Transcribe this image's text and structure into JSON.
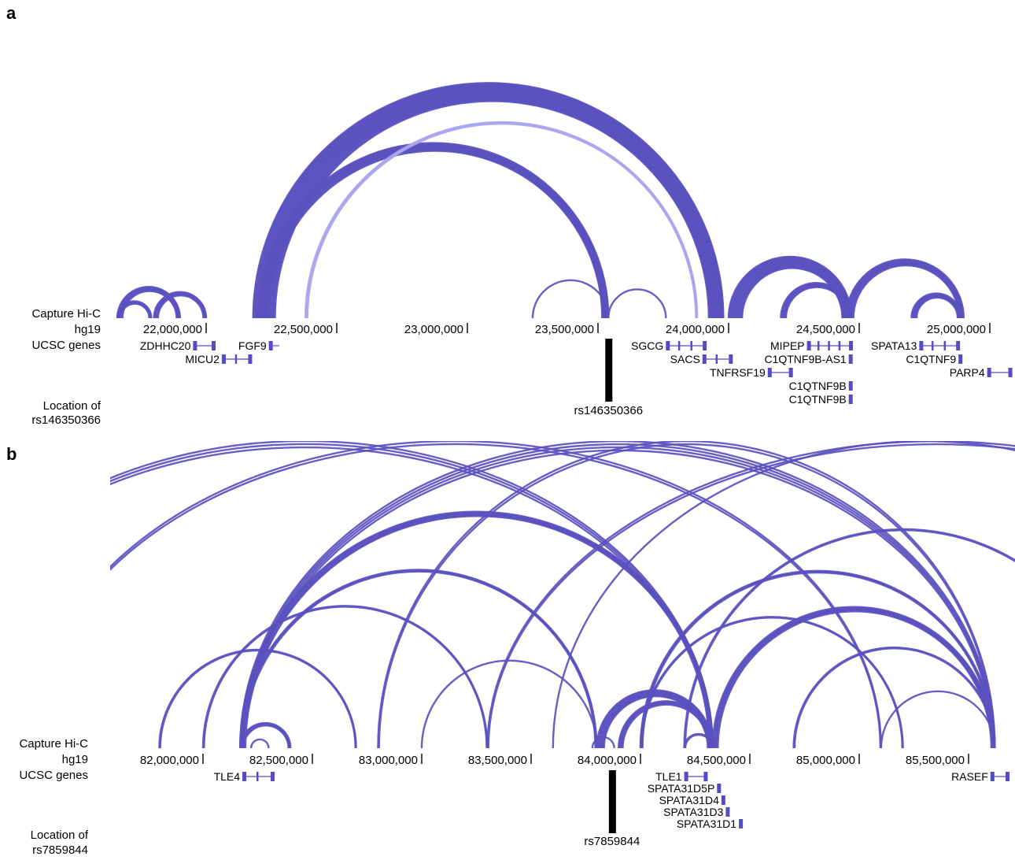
{
  "panels": [
    {
      "id": "a",
      "letter": "a",
      "track_labels": {
        "capture": "Capture Hi-C",
        "assembly": "hg19",
        "genes": "UCSC genes",
        "location_line1": "Location of",
        "location_line2": "rs146350366"
      },
      "ticks": [
        {
          "label": "22,000,000",
          "pos": 22000000
        },
        {
          "label": "22,500,000",
          "pos": 22500000
        },
        {
          "label": "23,000,000",
          "pos": 23000000
        },
        {
          "label": "23,500,000",
          "pos": 23500000
        },
        {
          "label": "24,000,000",
          "pos": 24000000
        },
        {
          "label": "24,500,000",
          "pos": 24500000
        },
        {
          "label": "25,000,000",
          "pos": 25000000
        }
      ],
      "snp": {
        "label": "rs146350366",
        "pos": 23540000
      },
      "genes": [
        {
          "name": "ZDHHC20",
          "start": 21950000,
          "end": 22030000,
          "row": 0
        },
        {
          "name": "FGF9",
          "start": 22240000,
          "end": 22280000,
          "row": 0
        },
        {
          "name": "MICU2",
          "start": 22060000,
          "end": 22170000,
          "row": 1
        },
        {
          "name": "SGCG",
          "start": 23760000,
          "end": 23910000,
          "row": 0
        },
        {
          "name": "SACS",
          "start": 23900000,
          "end": 24010000,
          "row": 1
        },
        {
          "name": "TNFRSF19",
          "start": 24150000,
          "end": 24240000,
          "row": 2
        },
        {
          "name": "MIPEP",
          "start": 24300000,
          "end": 24470000,
          "row": 0
        },
        {
          "name": "C1QTNF9B-AS1",
          "start": 24460000,
          "end": 24470000,
          "row": 1
        },
        {
          "name": "C1QTNF9B",
          "start": 24460000,
          "end": 24470000,
          "row": 3
        },
        {
          "name": "C1QTNF9B",
          "start": 24460000,
          "end": 24470000,
          "row": 4
        },
        {
          "name": "SPATA13",
          "start": 24730000,
          "end": 24880000,
          "row": 0
        },
        {
          "name": "C1QTNF9",
          "start": 24880000,
          "end": 24890000,
          "row": 1
        },
        {
          "name": "PARP4",
          "start": 24990000,
          "end": 25080000,
          "row": 2
        }
      ],
      "interactions": [
        {
          "from": 22180000,
          "to": 23980000,
          "count": 22
        },
        {
          "from": 22200000,
          "to": 23540000,
          "count": 10
        },
        {
          "from": 22380000,
          "to": 23880000,
          "count": 3,
          "light": true
        },
        {
          "from": 21660000,
          "to": 21900000,
          "count": 6
        },
        {
          "from": 21660000,
          "to": 21790000,
          "count": 4
        },
        {
          "from": 21800000,
          "to": 22000000,
          "count": 5
        },
        {
          "from": 23250000,
          "to": 23540000,
          "count": 1
        },
        {
          "from": 23540000,
          "to": 23760000,
          "count": 1
        },
        {
          "from": 24000000,
          "to": 24470000,
          "count": 14
        },
        {
          "from": 24200000,
          "to": 24470000,
          "count": 6
        },
        {
          "from": 24450000,
          "to": 24900000,
          "count": 8
        },
        {
          "from": 24700000,
          "to": 24890000,
          "count": 6
        }
      ]
    },
    {
      "id": "b",
      "letter": "b",
      "track_labels": {
        "capture": "Capture Hi-C",
        "assembly": "hg19",
        "genes": "UCSC genes",
        "location_line1": "Location of",
        "location_line2": "rs7859844"
      },
      "ticks": [
        {
          "label": "82,000,000",
          "pos": 82000000
        },
        {
          "label": "82,500,000",
          "pos": 82500000
        },
        {
          "label": "83,000,000",
          "pos": 83000000
        },
        {
          "label": "83,500,000",
          "pos": 83500000
        },
        {
          "label": "84,000,000",
          "pos": 84000000
        },
        {
          "label": "84,500,000",
          "pos": 84500000
        },
        {
          "label": "85,000,000",
          "pos": 85000000
        },
        {
          "label": "85,500,000",
          "pos": 85500000
        }
      ],
      "snp": {
        "label": "rs7859844",
        "pos": 83870000
      },
      "genes": [
        {
          "name": "TLE4",
          "start": 82180000,
          "end": 82320000,
          "row": 0
        },
        {
          "name": "TLE1",
          "start": 84200000,
          "end": 84300000,
          "row": 0
        },
        {
          "name": "SPATA31D5P",
          "start": 84350000,
          "end": 84360000,
          "row": 1
        },
        {
          "name": "SPATA31D4",
          "start": 84370000,
          "end": 84380000,
          "row": 2
        },
        {
          "name": "SPATA31D3",
          "start": 84390000,
          "end": 84400000,
          "row": 3
        },
        {
          "name": "SPATA31D1",
          "start": 84450000,
          "end": 84460000,
          "row": 4
        },
        {
          "name": "RASEF",
          "start": 85600000,
          "end": 85680000,
          "row": 0
        }
      ],
      "interactions": [
        {
          "from": 82170000,
          "to": 84330000,
          "count": 6
        },
        {
          "from": 82170000,
          "to": 83800000,
          "count": 3
        },
        {
          "from": 82170000,
          "to": 82400000,
          "count": 4
        },
        {
          "from": 82220000,
          "to": 82300000,
          "count": 1
        },
        {
          "from": 81800000,
          "to": 82700000,
          "count": 2
        },
        {
          "from": 82000000,
          "to": 83300000,
          "count": 2
        },
        {
          "from": 82170000,
          "to": 85620000,
          "count": 4
        },
        {
          "from": 80600000,
          "to": 84330000,
          "count": 3
        },
        {
          "from": 81200000,
          "to": 85100000,
          "count": 2
        },
        {
          "from": 82800000,
          "to": 85620000,
          "count": 2
        },
        {
          "from": 83300000,
          "to": 87400000,
          "count": 2
        },
        {
          "from": 83600000,
          "to": 87000000,
          "count": 1
        },
        {
          "from": 83800000,
          "to": 84330000,
          "count": 8
        },
        {
          "from": 83900000,
          "to": 84330000,
          "count": 5
        },
        {
          "from": 83780000,
          "to": 83880000,
          "count": 1
        },
        {
          "from": 83000000,
          "to": 83800000,
          "count": 1
        },
        {
          "from": 84200000,
          "to": 84330000,
          "count": 2
        },
        {
          "from": 84330000,
          "to": 85620000,
          "count": 6
        },
        {
          "from": 84000000,
          "to": 85620000,
          "count": 3
        },
        {
          "from": 84000000,
          "to": 85200000,
          "count": 2
        },
        {
          "from": 84700000,
          "to": 85620000,
          "count": 2
        },
        {
          "from": 85100000,
          "to": 85620000,
          "count": 1
        },
        {
          "from": 84200000,
          "to": 86200000,
          "count": 2
        }
      ]
    }
  ],
  "colors": {
    "arc": "#5a51bf",
    "arc_light": "#a9a5ee",
    "gene": "#544cbf",
    "snp_bar": "#000000"
  }
}
